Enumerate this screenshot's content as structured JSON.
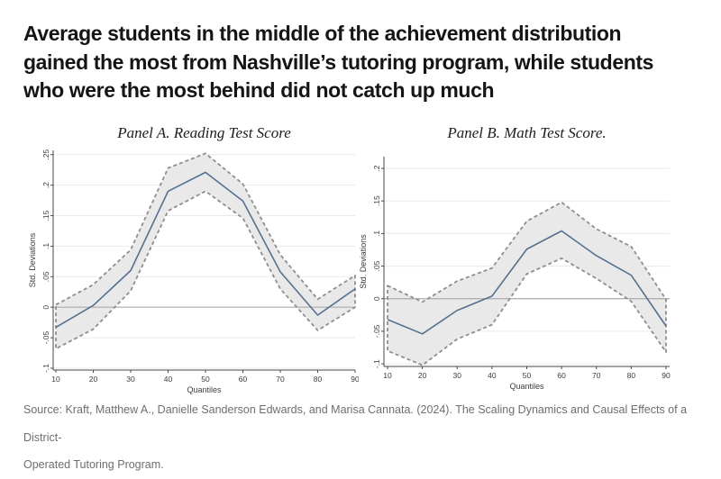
{
  "page": {
    "headline": "Average students in the middle of the achievement distribution\ngained the most from Nashville’s tutoring program, while students\nwho were the most behind did not catch up much",
    "source": "Source: Kraft, Matthew A., Danielle Sanderson Edwards, and Marisa Cannata. (2024). The Scaling Dynamics and Causal Effects of a District-\nOperated Tutoring Program."
  },
  "colors": {
    "headline": "#151515",
    "source": "#6e6e6e",
    "line": "#56718f",
    "band_fill": "#e9e9e9",
    "band_edge": "#8e8e8e",
    "grid": "#eaeaea",
    "zero_line": "#aaaaaa",
    "axis": "#4a4a4a",
    "tick_text": "#3d3d3d",
    "panel_title": "#1c1c1c"
  },
  "chart_data": [
    {
      "type": "line",
      "title": "Panel A. Reading Test Score",
      "xlabel": "Quantiles",
      "ylabel": "Std. Deviations",
      "x": [
        10,
        20,
        30,
        40,
        50,
        60,
        70,
        80,
        90
      ],
      "series": [
        {
          "name": "estimate",
          "values": [
            -0.033,
            0.003,
            0.06,
            0.19,
            0.221,
            0.174,
            0.058,
            -0.013,
            0.03
          ]
        },
        {
          "name": "ci_upper",
          "values": [
            0.004,
            0.037,
            0.094,
            0.228,
            0.252,
            0.202,
            0.086,
            0.013,
            0.052
          ]
        },
        {
          "name": "ci_lower",
          "values": [
            -0.068,
            -0.036,
            0.027,
            0.158,
            0.19,
            0.146,
            0.03,
            -0.038,
            0.0
          ]
        }
      ],
      "ylim": [
        -0.103,
        0.257
      ],
      "yticks": [
        -0.1,
        -0.05,
        0,
        0.05,
        0.1,
        0.15,
        0.2,
        0.25
      ],
      "ytick_labels": [
        "-.1",
        "-.05",
        "0",
        ".05",
        ".1",
        ".15",
        ".2",
        ".25"
      ],
      "xticks": [
        10,
        20,
        30,
        40,
        50,
        60,
        70,
        80,
        90
      ],
      "xtick_labels": [
        "10",
        "20",
        "30",
        "40",
        "50",
        "60",
        "70",
        "80",
        "90"
      ],
      "grid": "horizontal",
      "legend": "none"
    },
    {
      "type": "line",
      "title": "Panel B. Math Test Score.",
      "xlabel": "Quantiles",
      "ylabel": "Std. Deviations",
      "x": [
        10,
        20,
        30,
        40,
        50,
        60,
        70,
        80,
        90
      ],
      "series": [
        {
          "name": "estimate",
          "values": [
            -0.032,
            -0.054,
            -0.018,
            0.004,
            0.076,
            0.104,
            0.066,
            0.036,
            -0.042
          ]
        },
        {
          "name": "ci_upper",
          "values": [
            0.02,
            -0.005,
            0.027,
            0.047,
            0.119,
            0.148,
            0.107,
            0.08,
            -0.001
          ]
        },
        {
          "name": "ci_lower",
          "values": [
            -0.08,
            -0.102,
            -0.062,
            -0.04,
            0.038,
            0.062,
            0.031,
            -0.004,
            -0.082
          ]
        }
      ],
      "ylim": [
        -0.104,
        0.218
      ],
      "yticks": [
        -0.1,
        -0.05,
        0,
        0.05,
        0.1,
        0.15,
        0.2
      ],
      "ytick_labels": [
        "-.1",
        "-.05",
        "0",
        ".05",
        ".1",
        ".15",
        ".2"
      ],
      "xticks": [
        10,
        20,
        30,
        40,
        50,
        60,
        70,
        80,
        90
      ],
      "xtick_labels": [
        "10",
        "20",
        "30",
        "40",
        "50",
        "60",
        "70",
        "80",
        "90"
      ],
      "grid": "horizontal",
      "legend": "none"
    }
  ]
}
